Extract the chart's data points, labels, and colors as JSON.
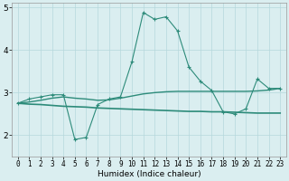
{
  "x": [
    0,
    1,
    2,
    3,
    4,
    5,
    6,
    7,
    8,
    9,
    10,
    11,
    12,
    13,
    14,
    15,
    16,
    17,
    18,
    19,
    20,
    21,
    22,
    23
  ],
  "line1": [
    2.75,
    2.85,
    2.9,
    2.95,
    2.95,
    1.9,
    1.95,
    2.72,
    2.85,
    2.9,
    3.72,
    4.88,
    4.72,
    4.78,
    4.45,
    3.6,
    3.27,
    3.05,
    2.55,
    2.5,
    2.62,
    3.32,
    3.1,
    3.1
  ],
  "line2": [
    2.75,
    2.73,
    2.72,
    2.7,
    2.68,
    2.67,
    2.66,
    2.64,
    2.63,
    2.62,
    2.61,
    2.6,
    2.59,
    2.58,
    2.57,
    2.56,
    2.56,
    2.55,
    2.55,
    2.54,
    2.53,
    2.52,
    2.52,
    2.52
  ],
  "line3": [
    2.75,
    2.78,
    2.82,
    2.87,
    2.9,
    2.87,
    2.85,
    2.82,
    2.83,
    2.87,
    2.92,
    2.97,
    3.0,
    3.02,
    3.03,
    3.03,
    3.03,
    3.03,
    3.03,
    3.03,
    3.03,
    3.04,
    3.06,
    3.1
  ],
  "color": "#2d8b7a",
  "bg_color": "#daeef0",
  "grid_color": "#b5d8dc",
  "xlabel": "Humidex (Indice chaleur)",
  "ylim": [
    1.5,
    5.1
  ],
  "xlim": [
    -0.5,
    23.5
  ],
  "yticks": [
    2,
    3,
    4,
    5
  ],
  "xticks": [
    0,
    1,
    2,
    3,
    4,
    5,
    6,
    7,
    8,
    9,
    10,
    11,
    12,
    13,
    14,
    15,
    16,
    17,
    18,
    19,
    20,
    21,
    22,
    23
  ],
  "xlabel_fontsize": 6.5,
  "tick_fontsize": 5.5,
  "ytick_fontsize": 6.5
}
